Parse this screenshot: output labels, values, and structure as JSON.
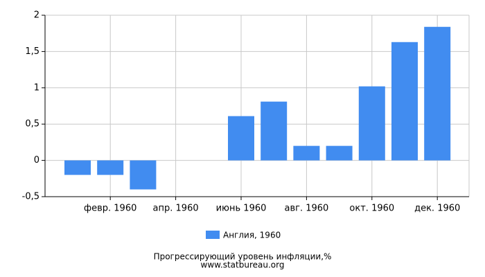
{
  "chart_data": {
    "type": "bar",
    "title": "Прогрессирующий уровень инфляции,%",
    "source": "www.statbureau.org",
    "categories": [
      null,
      "февр. 1960",
      null,
      "апр. 1960",
      null,
      "июнь 1960",
      null,
      "авг. 1960",
      null,
      "окт. 1960",
      null,
      "дек. 1960"
    ],
    "series": [
      {
        "name": "Англия, 1960",
        "color": "#418cf0",
        "values": [
          -0.2,
          -0.2,
          -0.4,
          0,
          0,
          0.61,
          0.81,
          0.2,
          0.2,
          1.02,
          1.63,
          1.84
        ]
      }
    ],
    "ylim": [
      -0.5,
      2
    ],
    "yticks": [
      {
        "value": -0.5,
        "label": "-0,5"
      },
      0,
      {
        "value": 0.5,
        "label": "0,5"
      },
      1,
      {
        "value": 1.5,
        "label": "1,5"
      },
      2
    ],
    "grid": true
  }
}
